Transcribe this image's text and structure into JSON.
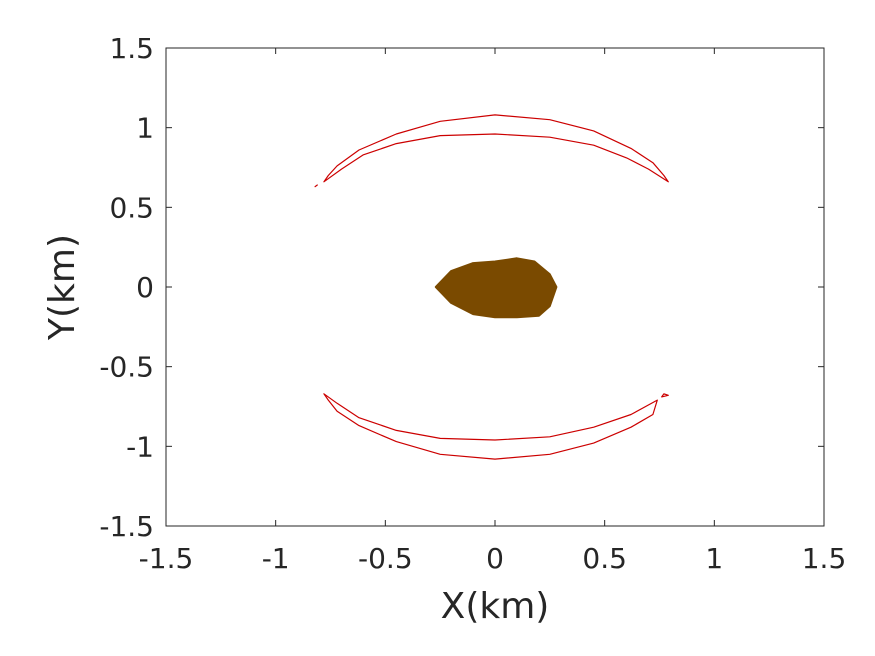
{
  "chart_data": {
    "type": "line",
    "title": "",
    "xlabel": "X(km)",
    "ylabel": "Y(km)",
    "xlim": [
      -1.5,
      1.5
    ],
    "ylim": [
      -1.5,
      1.5
    ],
    "xticks": [
      "-1.5",
      "-1",
      "-0.5",
      "0",
      "0.5",
      "1",
      "1.5"
    ],
    "yticks": [
      "-1.5",
      "-1",
      "-0.5",
      "0",
      "0.5",
      "1",
      "1.5"
    ],
    "xtick_values": [
      -1.5,
      -1,
      -0.5,
      0,
      0.5,
      1,
      1.5
    ],
    "ytick_values": [
      -1.5,
      -1,
      -0.5,
      0,
      0.5,
      1,
      1.5
    ],
    "grid": false,
    "legend": "none",
    "colors": {
      "arc": "#cc0000",
      "body": "#7a4a00",
      "axes": "#262626"
    },
    "series": [
      {
        "x": [
          -0.78,
          -0.76,
          -0.72,
          -0.62,
          -0.45,
          -0.25,
          0.0,
          0.25,
          0.45,
          0.62,
          0.72,
          0.77,
          0.79,
          0.7,
          0.6,
          0.45,
          0.25,
          0.0,
          -0.25,
          -0.45,
          -0.6,
          -0.7,
          -0.78
        ],
        "y": [
          0.66,
          0.7,
          0.76,
          0.86,
          0.96,
          1.04,
          1.08,
          1.05,
          0.98,
          0.87,
          0.78,
          0.7,
          0.66,
          0.74,
          0.81,
          0.89,
          0.94,
          0.96,
          0.95,
          0.9,
          0.83,
          0.74,
          0.66
        ]
      },
      {
        "x": [
          -0.82,
          -0.81
        ],
        "y": [
          0.63,
          0.64
        ]
      },
      {
        "x": [
          -0.78,
          -0.76,
          -0.72,
          -0.62,
          -0.45,
          -0.25,
          0.0,
          0.25,
          0.45,
          0.62,
          0.72,
          0.74,
          0.62,
          0.45,
          0.25,
          0.0,
          -0.25,
          -0.45,
          -0.62,
          -0.72,
          -0.78
        ],
        "y": [
          -0.67,
          -0.71,
          -0.78,
          -0.87,
          -0.97,
          -1.05,
          -1.08,
          -1.05,
          -0.98,
          -0.88,
          -0.8,
          -0.71,
          -0.8,
          -0.88,
          -0.94,
          -0.96,
          -0.95,
          -0.9,
          -0.82,
          -0.73,
          -0.67
        ]
      },
      {
        "x": [
          0.76,
          0.79,
          0.77,
          0.76
        ],
        "y": [
          -0.69,
          -0.68,
          -0.67,
          -0.69
        ]
      },
      {
        "x": [
          -0.27,
          -0.2,
          -0.1,
          0.0,
          0.1,
          0.18,
          0.25,
          0.28,
          0.25,
          0.2,
          0.1,
          0.0,
          -0.1,
          -0.2,
          -0.27
        ],
        "y": [
          0.0,
          0.1,
          0.15,
          0.16,
          0.18,
          0.16,
          0.08,
          0.0,
          -0.12,
          -0.18,
          -0.19,
          -0.19,
          -0.17,
          -0.1,
          0.0
        ]
      }
    ]
  }
}
